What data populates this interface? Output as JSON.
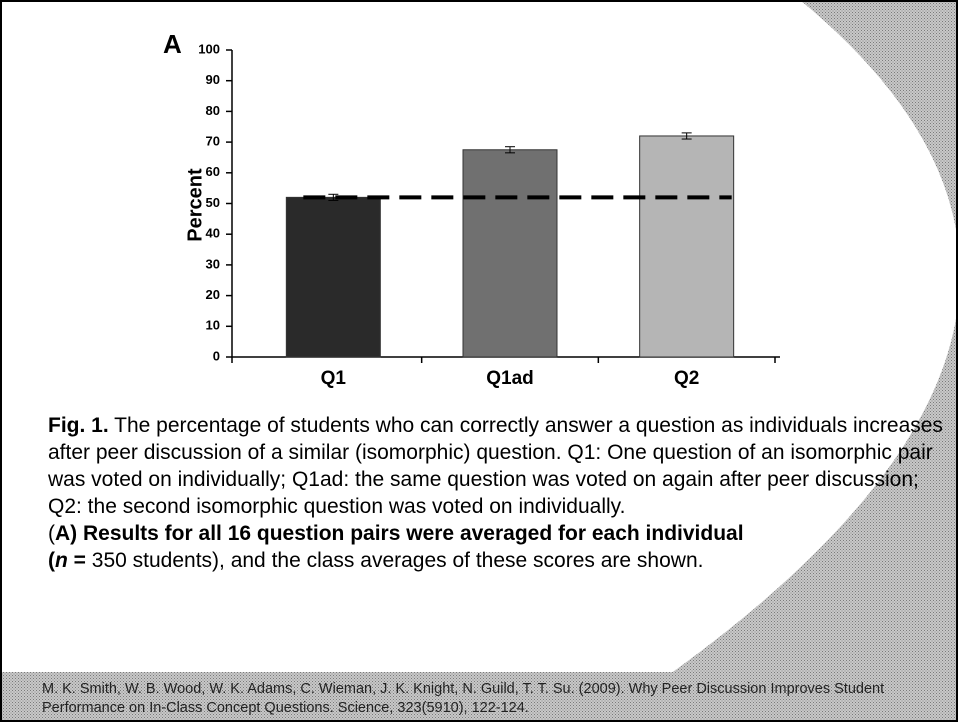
{
  "chart_data": {
    "type": "bar",
    "panel_label": "A",
    "y_label": "Percent",
    "categories": [
      "Q1",
      "Q1ad",
      "Q2"
    ],
    "values": [
      52,
      67.5,
      72
    ],
    "errors": [
      1,
      1,
      1
    ],
    "colors": [
      "#2a2a2a",
      "#707070",
      "#b5b5b5"
    ],
    "reference_line": 52,
    "ylim": [
      0,
      100
    ],
    "yticks": [
      0,
      10,
      20,
      30,
      40,
      50,
      60,
      70,
      80,
      90,
      100
    ],
    "grid": false
  },
  "caption": {
    "label": "Fig. 1.",
    "text": " The percentage of students who can correctly answer a question as individuals increases after peer discussion of a similar (isomorphic) question. Q1: One question of an isomorphic pair was voted on individually; Q1ad: the same question was voted on again after peer discussion; Q2: the second isomorphic question was voted on individually.",
    "panel_note": [
      "(",
      "A) Results for all 16 question pairs were averaged for each individual",
      "(",
      "n",
      " =",
      " 350 students), and the class averages of these scores are shown."
    ]
  },
  "citation": "M. K. Smith,  W. B. Wood,  W. K. Adams,  C. Wieman,  J. K. Knight,  N. Guild,  T. T. Su. (2009). Why Peer Discussion Improves Student Performance on In-Class Concept Questions. Science, 323(5910), 122-124."
}
